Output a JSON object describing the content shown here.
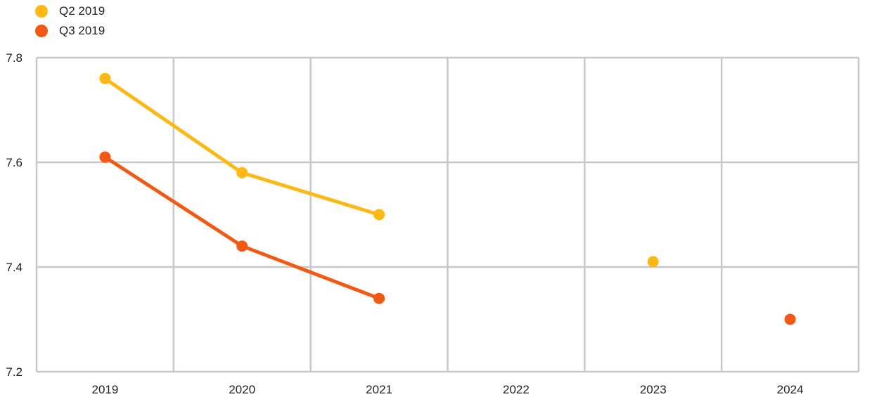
{
  "chart_data": {
    "type": "line",
    "categories": [
      "2019",
      "2020",
      "2021",
      "2022",
      "2023",
      "2024"
    ],
    "series": [
      {
        "name": "Q2 2019",
        "color": "#FDB813",
        "values": [
          7.76,
          7.58,
          7.5,
          null,
          7.41,
          null
        ]
      },
      {
        "name": "Q3 2019",
        "color": "#F25A14",
        "values": [
          7.61,
          7.44,
          7.34,
          null,
          null,
          7.3
        ]
      }
    ],
    "title": "",
    "xlabel": "",
    "ylabel": "",
    "ylim": [
      7.2,
      7.8
    ],
    "yticks": [
      "7.2",
      "7.4",
      "7.6",
      "7.8"
    ],
    "grid": true,
    "legend_position": "top-left",
    "grid_color": "#C8C8C8"
  }
}
